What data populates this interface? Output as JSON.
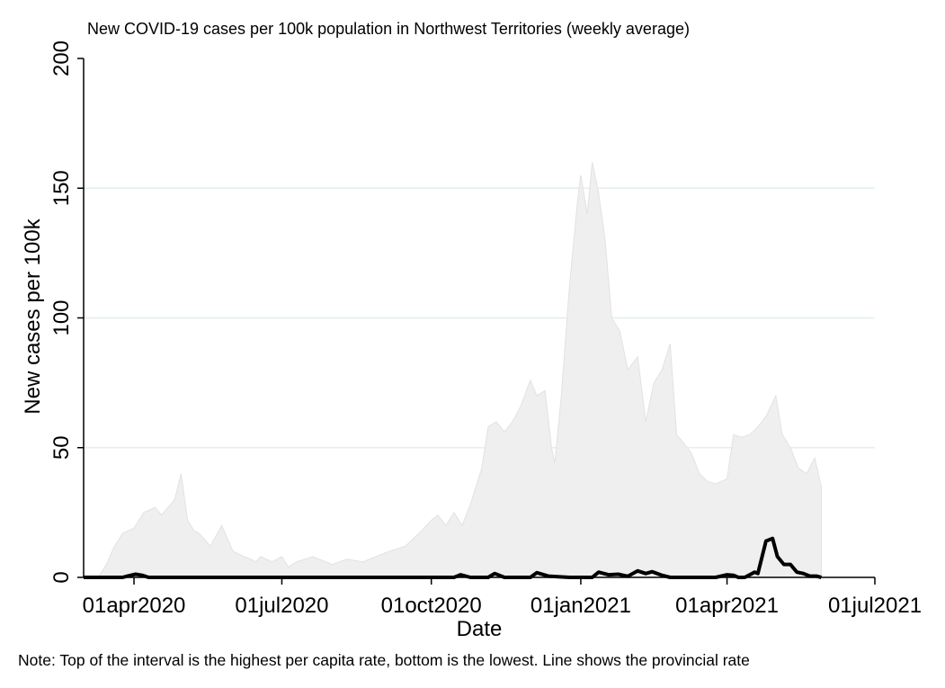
{
  "chart_data": {
    "type": "area",
    "title": "New COVID-19 cases per 100k population in Northwest Territories (weekly average)",
    "xlabel": "Date",
    "ylabel": "New cases per 100k",
    "note": "Note: Top of the interval is the highest per capita rate, bottom is the lowest. Line shows the provincial rate",
    "xlim": [
      "2020-03-01",
      "2021-07-01"
    ],
    "ylim": [
      0,
      200
    ],
    "y_ticks": [
      0,
      50,
      100,
      150,
      200
    ],
    "x_ticks": [
      {
        "date": "2020-04-01",
        "label": "01apr2020"
      },
      {
        "date": "2020-07-01",
        "label": "01jul2020"
      },
      {
        "date": "2020-10-01",
        "label": "01oct2020"
      },
      {
        "date": "2021-01-01",
        "label": "01jan2021"
      },
      {
        "date": "2021-04-01",
        "label": "01apr2021"
      },
      {
        "date": "2021-07-01",
        "label": "01jul2021"
      }
    ],
    "grid": true,
    "colors": {
      "band_fill": "#efefef",
      "band_edge": "#e2e2e2",
      "line": "#000000",
      "grid": "#e3eeee",
      "axis": "#000000"
    },
    "series": [
      {
        "kind": "band",
        "x": [
          "2020-03-01",
          "2020-03-10",
          "2020-03-15",
          "2020-03-20",
          "2020-03-25",
          "2020-04-01",
          "2020-04-07",
          "2020-04-14",
          "2020-04-18",
          "2020-04-22",
          "2020-04-26",
          "2020-04-30",
          "2020-05-04",
          "2020-05-08",
          "2020-05-11",
          "2020-05-14",
          "2020-05-18",
          "2020-05-25",
          "2020-06-01",
          "2020-06-08",
          "2020-06-12",
          "2020-06-15",
          "2020-06-18",
          "2020-06-25",
          "2020-07-01",
          "2020-07-05",
          "2020-07-10",
          "2020-07-20",
          "2020-08-01",
          "2020-08-10",
          "2020-08-20",
          "2020-08-28",
          "2020-09-05",
          "2020-09-15",
          "2020-09-25",
          "2020-10-01",
          "2020-10-05",
          "2020-10-10",
          "2020-10-15",
          "2020-10-20",
          "2020-10-25",
          "2020-11-01",
          "2020-11-05",
          "2020-11-10",
          "2020-11-15",
          "2020-11-20",
          "2020-11-25",
          "2020-12-01",
          "2020-12-05",
          "2020-12-10",
          "2020-12-14",
          "2020-12-16",
          "2020-12-20",
          "2020-12-25",
          "2020-12-30",
          "2021-01-01",
          "2021-01-05",
          "2021-01-08",
          "2021-01-12",
          "2021-01-16",
          "2021-01-20",
          "2021-01-25",
          "2021-01-30",
          "2021-02-05",
          "2021-02-10",
          "2021-02-15",
          "2021-02-20",
          "2021-02-25",
          "2021-03-01",
          "2021-03-05",
          "2021-03-10",
          "2021-03-15",
          "2021-03-20",
          "2021-03-25",
          "2021-04-01",
          "2021-04-05",
          "2021-04-10",
          "2021-04-15",
          "2021-04-20",
          "2021-04-25",
          "2021-05-01",
          "2021-05-05",
          "2021-05-10",
          "2021-05-15",
          "2021-05-20",
          "2021-05-25",
          "2021-05-29"
        ],
        "upper": [
          0,
          0,
          5,
          12,
          17,
          19,
          25,
          27,
          24,
          27,
          30,
          40,
          22,
          18,
          17,
          15,
          12,
          20,
          10,
          8,
          7,
          6,
          8,
          6,
          8,
          4,
          6,
          8,
          5,
          7,
          6,
          8,
          10,
          12,
          18,
          22,
          24,
          20,
          25,
          20,
          28,
          42,
          58,
          60,
          56,
          60,
          66,
          76,
          70,
          72,
          50,
          44,
          70,
          112,
          145,
          155,
          140,
          160,
          148,
          130,
          100,
          95,
          80,
          85,
          60,
          75,
          80,
          90,
          55,
          52,
          48,
          40,
          37,
          36,
          38,
          55,
          54,
          55,
          58,
          62,
          70,
          55,
          50,
          42,
          40,
          46,
          35
        ],
        "lower": [
          0,
          0,
          0,
          0,
          0,
          0,
          0,
          0,
          0,
          0,
          0,
          0,
          0,
          0,
          0,
          0,
          0,
          0,
          0,
          0,
          0,
          0,
          0,
          0,
          0,
          0,
          0,
          0,
          0,
          0,
          0,
          0,
          0,
          0,
          0,
          0,
          0,
          0,
          0,
          0,
          0,
          0,
          0,
          0,
          0,
          0,
          0,
          0,
          0,
          0,
          0,
          0,
          0,
          0,
          0,
          0,
          0,
          0,
          0,
          0,
          0,
          0,
          0,
          0,
          0,
          0,
          0,
          0,
          0,
          0,
          0,
          0,
          0,
          0,
          0,
          0,
          0,
          0,
          0,
          0,
          0,
          0,
          0,
          0,
          0,
          0,
          0
        ]
      },
      {
        "kind": "line",
        "x": [
          "2020-03-01",
          "2020-03-25",
          "2020-03-28",
          "2020-04-02",
          "2020-04-06",
          "2020-04-10",
          "2020-10-15",
          "2020-10-19",
          "2020-10-25",
          "2020-11-05",
          "2020-11-09",
          "2020-11-15",
          "2020-12-01",
          "2020-12-05",
          "2020-12-12",
          "2020-12-25",
          "2021-01-08",
          "2021-01-12",
          "2021-01-18",
          "2021-01-24",
          "2021-01-30",
          "2021-02-05",
          "2021-02-10",
          "2021-02-14",
          "2021-02-20",
          "2021-02-25",
          "2021-03-01",
          "2021-03-25",
          "2021-04-01",
          "2021-04-05",
          "2021-04-08",
          "2021-04-12",
          "2021-04-18",
          "2021-04-20",
          "2021-04-25",
          "2021-04-29",
          "2021-05-02",
          "2021-05-06",
          "2021-05-10",
          "2021-05-14",
          "2021-05-18",
          "2021-05-22",
          "2021-05-26",
          "2021-05-29"
        ],
        "y": [
          0,
          0,
          0.5,
          1.2,
          0.8,
          0,
          0,
          1,
          0,
          0,
          1.5,
          0,
          0,
          1.8,
          0.5,
          0,
          0,
          2,
          1,
          1.2,
          0.4,
          2.5,
          1.5,
          2.2,
          0.8,
          0,
          0,
          0,
          1,
          0.8,
          0,
          0,
          2,
          1.5,
          14,
          15,
          8,
          5,
          5,
          2,
          1.5,
          0.5,
          0.5,
          0
        ]
      }
    ]
  }
}
